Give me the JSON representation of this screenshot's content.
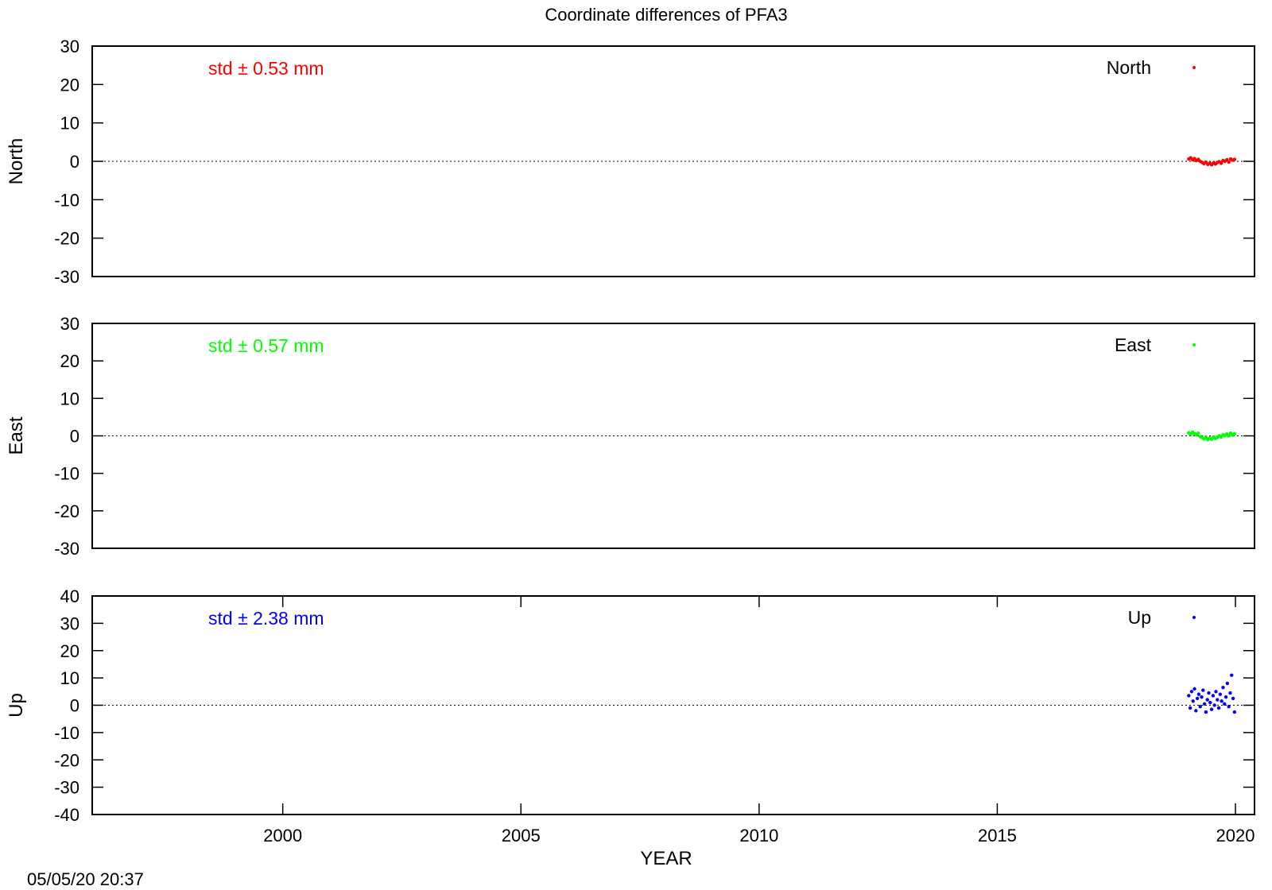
{
  "title": "Coordinate differences of PFA3",
  "xlabel": "YEAR",
  "timestamp": "05/05/20 20:37",
  "colors": {
    "North": "#ff0000",
    "East": "#00ff00",
    "Up": "#0000ff",
    "frame": "#000000",
    "zeroline": "#000000"
  },
  "chart_data": [
    {
      "type": "scatter",
      "panel": "North",
      "ylabel": "North",
      "legend": "North",
      "legend_position": "top-right",
      "annotation": "std ± 0.53 mm",
      "xlim": [
        1996,
        2020.4
      ],
      "ylim": [
        -30,
        30
      ],
      "yticks": [
        30,
        20,
        10,
        0,
        -10,
        -20,
        -30
      ],
      "ytick_labels": [
        "30",
        "20",
        "10",
        "0",
        "-10",
        "-20",
        "-30"
      ],
      "zero_line": true,
      "series": [
        {
          "x": [
            2019.02,
            2019.06,
            2019.1,
            2019.14,
            2019.18,
            2019.22,
            2019.26,
            2019.3,
            2019.34,
            2019.38,
            2019.42,
            2019.46,
            2019.5,
            2019.54,
            2019.58,
            2019.62,
            2019.66,
            2019.7,
            2019.74,
            2019.78,
            2019.82,
            2019.86,
            2019.9,
            2019.94,
            2019.98
          ],
          "y": [
            0.6,
            0.9,
            0.4,
            0.7,
            0.2,
            0.5,
            0.0,
            -0.3,
            -0.6,
            -0.2,
            -0.8,
            -0.5,
            -0.9,
            -0.4,
            -0.7,
            -0.3,
            -0.1,
            -0.5,
            0.2,
            0.0,
            0.4,
            -0.2,
            0.6,
            0.3,
            0.5
          ]
        }
      ]
    },
    {
      "type": "scatter",
      "panel": "East",
      "ylabel": "East",
      "legend": "East",
      "legend_position": "top-right",
      "annotation": "std ± 0.57 mm",
      "xlim": [
        1996,
        2020.4
      ],
      "ylim": [
        -30,
        30
      ],
      "yticks": [
        30,
        20,
        10,
        0,
        -10,
        -20,
        -30
      ],
      "ytick_labels": [
        "30",
        "20",
        "10",
        "0",
        "-10",
        "-20",
        "-30"
      ],
      "zero_line": true,
      "series": [
        {
          "x": [
            2019.02,
            2019.06,
            2019.1,
            2019.14,
            2019.18,
            2019.22,
            2019.26,
            2019.3,
            2019.34,
            2019.38,
            2019.42,
            2019.46,
            2019.5,
            2019.54,
            2019.58,
            2019.62,
            2019.66,
            2019.7,
            2019.74,
            2019.78,
            2019.82,
            2019.86,
            2019.9,
            2019.94,
            2019.98
          ],
          "y": [
            0.8,
            0.5,
            1.0,
            0.6,
            0.3,
            0.7,
            -0.2,
            -0.5,
            -0.8,
            -0.4,
            -1.0,
            -0.6,
            -0.9,
            -0.3,
            -0.7,
            -0.4,
            0.0,
            -0.3,
            0.3,
            0.1,
            0.5,
            0.0,
            0.7,
            0.2,
            0.6
          ]
        }
      ]
    },
    {
      "type": "scatter",
      "panel": "Up",
      "ylabel": "Up",
      "legend": "Up",
      "legend_position": "top-right",
      "annotation": "std ± 2.38 mm",
      "xlim": [
        1996,
        2020.4
      ],
      "ylim": [
        -40,
        40
      ],
      "yticks": [
        40,
        30,
        20,
        10,
        0,
        -10,
        -20,
        -30,
        -40
      ],
      "ytick_labels": [
        "40",
        "30",
        "20",
        "10",
        "0",
        "-10",
        "-20",
        "-30",
        "-40"
      ],
      "xticks": [
        2000,
        2005,
        2010,
        2015,
        2020
      ],
      "xtick_labels": [
        "2000",
        "2005",
        "2010",
        "2015",
        "2020"
      ],
      "zero_line": true,
      "series": [
        {
          "x": [
            2019.02,
            2019.05,
            2019.08,
            2019.11,
            2019.14,
            2019.17,
            2019.2,
            2019.23,
            2019.26,
            2019.29,
            2019.32,
            2019.35,
            2019.38,
            2019.41,
            2019.44,
            2019.47,
            2019.5,
            2019.53,
            2019.56,
            2019.59,
            2019.62,
            2019.65,
            2019.68,
            2019.71,
            2019.74,
            2019.77,
            2019.8,
            2019.83,
            2019.86,
            2019.89,
            2019.92,
            2019.95,
            2019.98
          ],
          "y": [
            3.5,
            -1.0,
            5.0,
            1.5,
            6.0,
            -2.0,
            2.5,
            4.0,
            -0.5,
            3.0,
            5.5,
            0.5,
            -2.5,
            2.0,
            4.5,
            1.0,
            -1.5,
            3.5,
            0.0,
            5.0,
            2.0,
            -1.0,
            4.0,
            1.5,
            6.5,
            0.5,
            3.0,
            8.0,
            -0.5,
            4.5,
            11.0,
            2.5,
            -2.5
          ]
        }
      ]
    }
  ]
}
